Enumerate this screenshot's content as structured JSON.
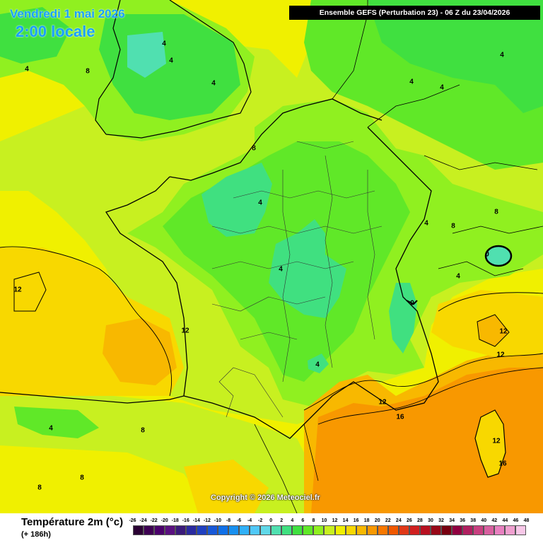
{
  "header": {
    "date_label": "Vendredi 1 mai 2026",
    "time_label": "2:00 locale",
    "model_label": "Ensemble GEFS  (Perturbation 23)  -  06 Z du 23/04/2026"
  },
  "copyright": "Copyright © 2026 Meteociel.fr",
  "legend": {
    "title": "Température 2m (°c)",
    "subtitle": "(+ 186h)",
    "labels": [
      "-26",
      "-24",
      "-22",
      "-20",
      "-18",
      "-16",
      "-14",
      "-12",
      "-10",
      "-8",
      "-6",
      "-4",
      "-2",
      "0",
      "2",
      "4",
      "6",
      "8",
      "10",
      "12",
      "14",
      "16",
      "18",
      "20",
      "22",
      "24",
      "26",
      "28",
      "30",
      "32",
      "34",
      "36",
      "38",
      "40",
      "42",
      "44",
      "46",
      "48"
    ],
    "colors": [
      "#2a0033",
      "#3d0052",
      "#4a006b",
      "#5a1080",
      "#3a1a7a",
      "#2a2aa0",
      "#2040c0",
      "#1858d8",
      "#1070e8",
      "#1890f0",
      "#30b0f8",
      "#50c8f8",
      "#60d8e8",
      "#50e0b0",
      "#40e080",
      "#40e040",
      "#60e828",
      "#90f020",
      "#c8f020",
      "#f0f000",
      "#f8d800",
      "#f8b800",
      "#f89800",
      "#f87800",
      "#f05800",
      "#e03818",
      "#d02020",
      "#b81020",
      "#980818",
      "#780010",
      "#900040",
      "#b02060",
      "#c84080",
      "#d860a0",
      "#e880c0",
      "#f0a0d0",
      "#f8c8e8"
    ]
  },
  "map_labels": [
    {
      "value": "4",
      "id": "iso-4-a"
    },
    {
      "value": "4",
      "id": "iso-4-b"
    },
    {
      "value": "4",
      "id": "iso-4-c"
    },
    {
      "value": "8",
      "id": "iso-8-a"
    },
    {
      "value": "4",
      "id": "iso-4-d"
    },
    {
      "value": "4",
      "id": "iso-4-e"
    },
    {
      "value": "4",
      "id": "iso-4-f"
    },
    {
      "value": "4",
      "id": "iso-4-g"
    },
    {
      "value": "8",
      "id": "iso-8-b"
    },
    {
      "value": "4",
      "id": "iso-4-h"
    },
    {
      "value": "8",
      "id": "iso-8-c"
    },
    {
      "value": "4",
      "id": "iso-4-i"
    },
    {
      "value": "4",
      "id": "iso-4-j"
    },
    {
      "value": "8",
      "id": "iso-8-d"
    },
    {
      "value": "0",
      "id": "iso-0-a"
    },
    {
      "value": "4",
      "id": "iso-4-k"
    },
    {
      "value": "0",
      "id": "iso-0-b"
    },
    {
      "value": "12",
      "id": "iso-12-a"
    },
    {
      "value": "12",
      "id": "iso-12-b"
    },
    {
      "value": "4",
      "id": "iso-4-l"
    },
    {
      "value": "12",
      "id": "iso-12-c"
    },
    {
      "value": "12",
      "id": "iso-12-d"
    },
    {
      "value": "12",
      "id": "iso-12-e"
    },
    {
      "value": "16",
      "id": "iso-16-a"
    },
    {
      "value": "12",
      "id": "iso-12-f"
    },
    {
      "value": "16",
      "id": "iso-16-b"
    },
    {
      "value": "4",
      "id": "iso-4-m"
    },
    {
      "value": "8",
      "id": "iso-8-e"
    },
    {
      "value": "8",
      "id": "iso-8-f"
    },
    {
      "value": "8",
      "id": "iso-8-g"
    },
    {
      "value": "8",
      "id": "iso-8-h"
    },
    {
      "value": "4",
      "id": "iso-4-n"
    }
  ]
}
